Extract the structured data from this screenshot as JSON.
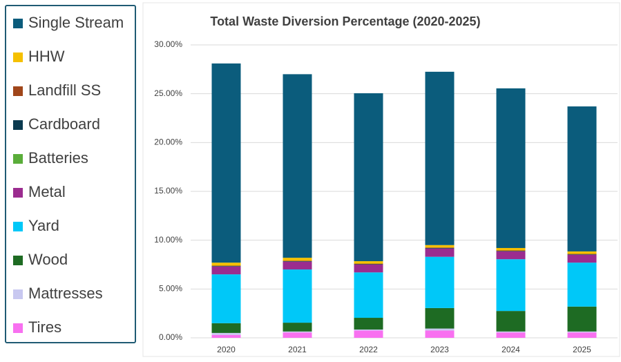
{
  "chart_data": {
    "type": "stacked_bar",
    "title": "Total Waste Diversion Percentage (2020-2025)",
    "categories": [
      "2020",
      "2021",
      "2022",
      "2023",
      "2024",
      "2025"
    ],
    "series": [
      {
        "name": "Single Stream",
        "color": "#0b5c7c",
        "values": [
          20.4,
          18.8,
          17.2,
          17.75,
          16.35,
          14.85
        ]
      },
      {
        "name": "HHW",
        "color": "#f5c000",
        "values": [
          0.3,
          0.3,
          0.25,
          0.25,
          0.25,
          0.25
        ]
      },
      {
        "name": "Landfill SS",
        "color": "#a0461a",
        "values": [
          0.05,
          0.05,
          0.05,
          0.05,
          0.05,
          0.05
        ]
      },
      {
        "name": "Cardboard",
        "color": "#0b3a4f",
        "values": [
          0.05,
          0.05,
          0.05,
          0.05,
          0.05,
          0.05
        ]
      },
      {
        "name": "Batteries",
        "color": "#5aad3a",
        "values": [
          0,
          0,
          0,
          0,
          0,
          0
        ]
      },
      {
        "name": "Metal",
        "color": "#9b2c8f",
        "values": [
          0.8,
          0.8,
          0.8,
          0.85,
          0.8,
          0.8
        ]
      },
      {
        "name": "Yard",
        "color": "#00c8f8",
        "values": [
          5.0,
          5.45,
          4.65,
          5.25,
          5.3,
          4.5
        ]
      },
      {
        "name": "Wood",
        "color": "#1e6b23",
        "values": [
          1.0,
          0.9,
          1.2,
          2.1,
          2.1,
          2.55
        ]
      },
      {
        "name": "Mattresses",
        "color": "#c8c8f0",
        "values": [
          0.2,
          0.1,
          0.1,
          0.2,
          0.1,
          0.1
        ]
      },
      {
        "name": "Tires",
        "color": "#f870f0",
        "values": [
          0.3,
          0.55,
          0.75,
          0.75,
          0.55,
          0.55
        ]
      }
    ],
    "ylim": [
      0,
      30
    ],
    "yticks": [
      {
        "value": 0,
        "label": "0.00%"
      },
      {
        "value": 5,
        "label": "5.00%"
      },
      {
        "value": 10,
        "label": "10.00%"
      },
      {
        "value": 15,
        "label": "15.00%"
      },
      {
        "value": 20,
        "label": "20.00%"
      },
      {
        "value": 25,
        "label": "25.00%"
      },
      {
        "value": 30,
        "label": "30.00%"
      }
    ],
    "grid": true,
    "legend": "left"
  }
}
